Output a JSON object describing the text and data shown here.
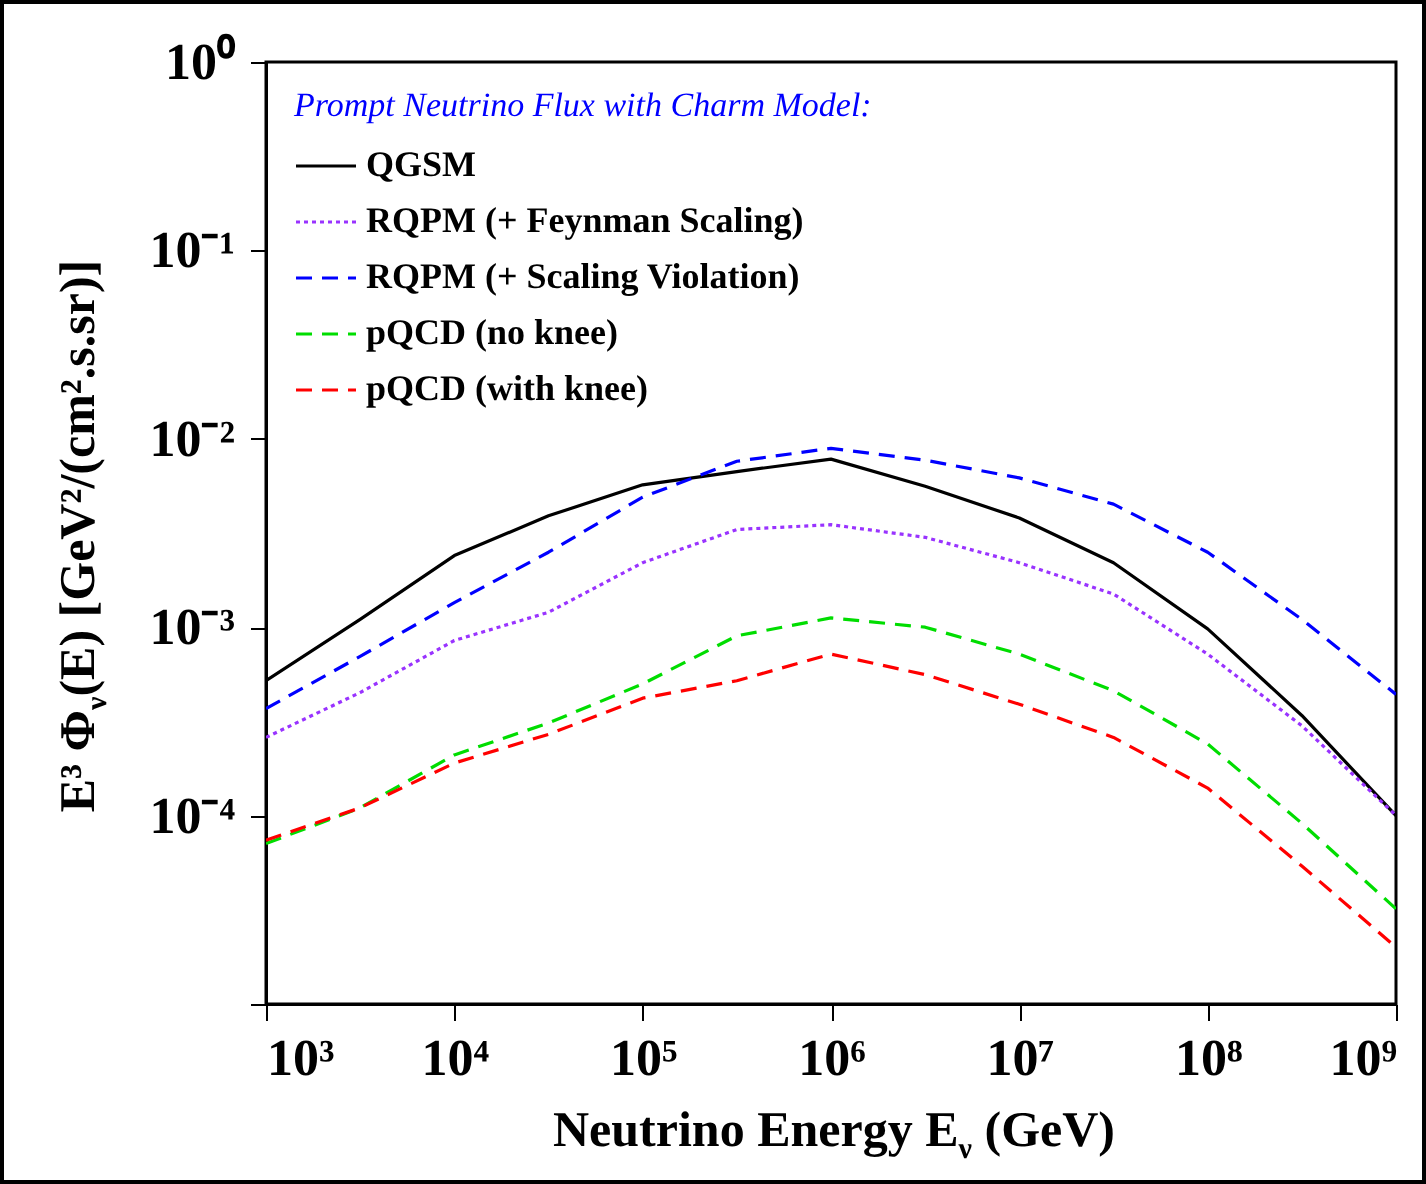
{
  "chart_data": {
    "type": "line",
    "xlabel": "Neutrino Energy  E$_{ν}$ (GeV)",
    "ylabel": "E³ Φ$_{ν}$(E)   [GeV²/(cm².s.sr)]",
    "legend_title": "Prompt Neutrino Flux with Charm Model:",
    "legend": "top left",
    "log": "xy",
    "grid": false,
    "x": [
      1000,
      3162,
      10000,
      31623,
      100000,
      316228,
      1000000,
      3162278,
      10000000,
      31622777,
      100000000,
      316227766,
      1000000000
    ],
    "xlim": [
      1000,
      1000000000
    ],
    "xticks": [
      {
        "value": 1000,
        "label": "10³"
      },
      {
        "value": 10000,
        "label": "10⁴"
      },
      {
        "value": 100000,
        "label": "10⁵"
      },
      {
        "value": 1000000,
        "label": "10⁶"
      },
      {
        "value": 10000000,
        "label": "10⁷"
      },
      {
        "value": 100000000,
        "label": "10⁸"
      },
      {
        "value": 1000000000,
        "label": "10⁹"
      }
    ],
    "ylim": [
      1e-05,
      1
    ],
    "yticks": [
      {
        "value": 1e-05,
        "label": null
      },
      {
        "value": 0.0001,
        "label": "10⁻⁴"
      },
      {
        "value": 0.001,
        "label": "10⁻³"
      },
      {
        "value": 0.01,
        "label": "10⁻²"
      },
      {
        "value": 0.1,
        "label": "10⁻¹"
      },
      {
        "value": 1,
        "label": "10⁰"
      }
    ],
    "series": [
      {
        "name": "QGSM",
        "color": "#000000",
        "line_style": "solid",
        "values": [
          0.00052,
          0.0011,
          0.0024,
          0.0039,
          0.0057,
          0.0067,
          0.0078,
          0.0056,
          0.0038,
          0.0022,
          0.00098,
          0.00034,
          0.0001
        ]
      },
      {
        "name": "RQPM (+ Feynman Scaling)",
        "color": "#9933ff",
        "line_style": "dotted",
        "values": [
          0.00026,
          0.00045,
          0.00085,
          0.0012,
          0.0022,
          0.0033,
          0.0035,
          0.003,
          0.0022,
          0.0015,
          0.00072,
          0.0003,
          0.0001
        ]
      },
      {
        "name": "RQPM (+ Scaling Violation)",
        "color": "#0000ff",
        "line_style": "dashed",
        "values": [
          0.00037,
          0.0007,
          0.00135,
          0.0025,
          0.0049,
          0.0076,
          0.0089,
          0.0077,
          0.0062,
          0.0045,
          0.0025,
          0.0011,
          0.00044
        ]
      },
      {
        "name": "pQCD (no knee)",
        "color": "#00dd00",
        "line_style": "dashed",
        "values": [
          7.1e-05,
          0.00011,
          0.00021,
          0.00031,
          0.0005,
          0.0009,
          0.00112,
          0.001,
          0.00072,
          0.00046,
          0.00024,
          9.1e-05,
          3.2e-05
        ]
      },
      {
        "name": "pQCD (with knee)",
        "color": "#ff0000",
        "line_style": "dashed",
        "values": [
          7.4e-05,
          0.00011,
          0.00019,
          0.00027,
          0.00042,
          0.00052,
          0.00072,
          0.00056,
          0.00039,
          0.00026,
          0.00014,
          5.4e-05,
          2e-05
        ]
      }
    ]
  }
}
